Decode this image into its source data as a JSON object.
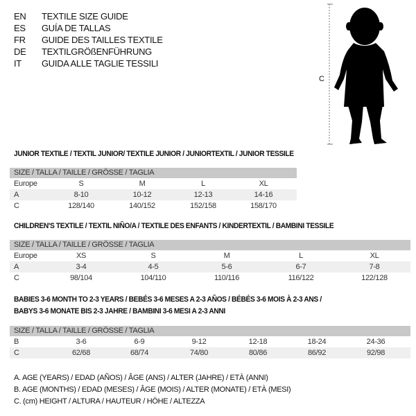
{
  "languages": [
    {
      "code": "EN",
      "title": "TEXTILE SIZE GUIDE"
    },
    {
      "code": "ES",
      "title": "GUÍA DE TALLAS"
    },
    {
      "code": "FR",
      "title": "GUIDE DES TAILLES TEXTILE"
    },
    {
      "code": "DE",
      "title": "TEXTILGRÖßENFÜHRUNG"
    },
    {
      "code": "IT",
      "title": "GUIDA ALLE TAGLIE TESSILI"
    }
  ],
  "figure": {
    "measure_label": "C"
  },
  "size_header": "SIZE / TALLA / TAILLE / GRÖSSE / TAGLIA",
  "junior": {
    "title": "JUNIOR TEXTILE / TEXTIL JUNIOR/ TEXTILE JUNIOR / JUNIORTEXTIL / JUNIOR TESSILE",
    "rows": [
      {
        "label": "Europe",
        "values": [
          "S",
          "M",
          "L",
          "XL"
        ]
      },
      {
        "label": "A",
        "values": [
          "8-10",
          "10-12",
          "12-13",
          "14-16"
        ]
      },
      {
        "label": "C",
        "values": [
          "128/140",
          "140/152",
          "152/158",
          "158/170"
        ]
      }
    ]
  },
  "children": {
    "title": "CHILDREN'S TEXTILE / TEXTIL NIÑO/A / TEXTILE DES ENFANTS / KINDERTEXTIL / BAMBINI TESSILE",
    "rows": [
      {
        "label": "Europe",
        "values": [
          "XS",
          "S",
          "M",
          "L",
          "XL"
        ]
      },
      {
        "label": "A",
        "values": [
          "3-4",
          "4-5",
          "5-6",
          "6-7",
          "7-8"
        ]
      },
      {
        "label": "C",
        "values": [
          "98/104",
          "104/110",
          "110/116",
          "116/122",
          "122/128"
        ]
      }
    ]
  },
  "babies": {
    "title_line1": "BABIES 3-6 MONTH TO 2-3 YEARS / BEBÉS 3-6 MESES A 2-3 AÑOS / BÉBÉS 3-6 MOIS À 2-3 ANS /",
    "title_line2": "BABYS 3-6 MONATE BIS 2-3 JAHRE / BAMBINI 3-6 MESI A 2-3 ANNI",
    "rows": [
      {
        "label": "B",
        "values": [
          "3-6",
          "6-9",
          "9-12",
          "12-18",
          "18-24",
          "24-36"
        ]
      },
      {
        "label": "C",
        "values": [
          "62/68",
          "68/74",
          "74/80",
          "80/86",
          "86/92",
          "92/98"
        ]
      }
    ]
  },
  "legend": [
    "A. AGE (YEARS) / EDAD (AÑOS) / ÂGE (ANS) / ALTER (JAHRE) / ETÀ (ANNI)",
    "B. AGE (MONTHS) / EDAD (MESES) / ÂGE (MOIS) / ALTER (MONATE) / ETÀ (MESI)",
    "C. (cm) HEIGHT / ALTURA / HAUTEUR / HÖHE / ALTEZZA"
  ]
}
